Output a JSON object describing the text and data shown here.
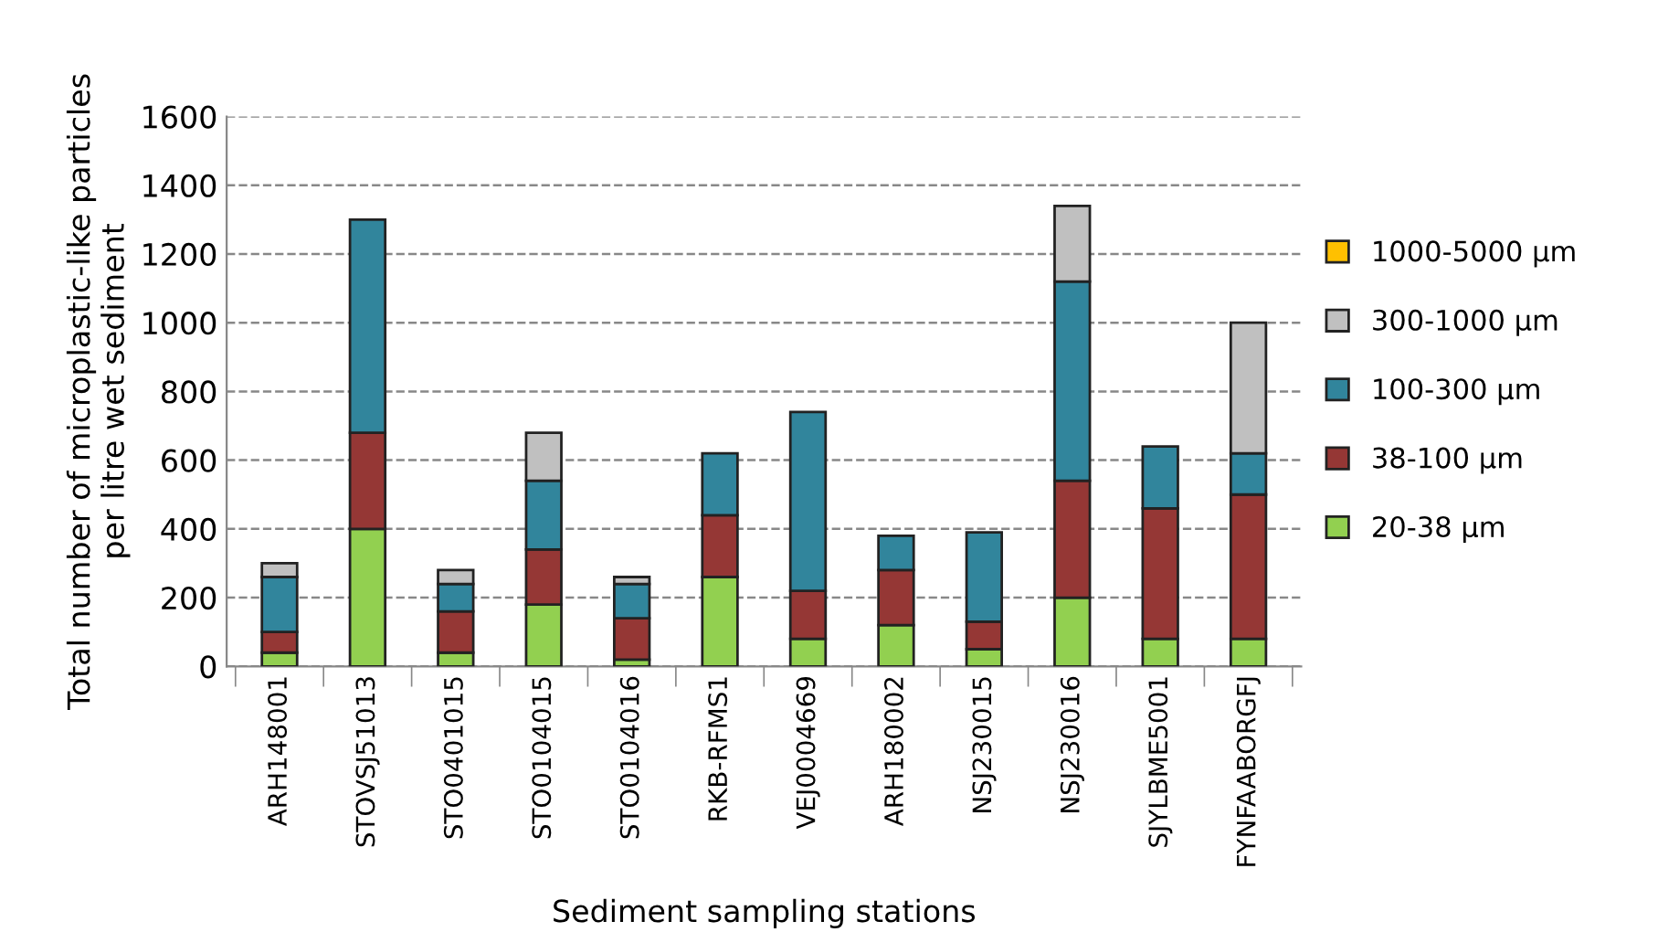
{
  "chart_data": {
    "type": "bar",
    "stacked": true,
    "xlabel": "Sediment sampling stations",
    "ylabel": "Total number of microplastic-like particles\nper litre wet sediment",
    "categories": [
      "ARH148001",
      "STOVSJ51013",
      "STO0401015",
      "STO0104015",
      "STO0104016",
      "RKB-RFMS1",
      "VEJ0004669",
      "ARH180002",
      "NSJ230015",
      "NSJ230016",
      "SJYLBME5001",
      "FYNFAABORGFJ"
    ],
    "series": [
      {
        "name": "20-38 µm",
        "color": "#92d050",
        "values": [
          40,
          400,
          40,
          180,
          20,
          260,
          80,
          120,
          50,
          200,
          80,
          80
        ]
      },
      {
        "name": "38-100 µm",
        "color": "#953735",
        "values": [
          60,
          280,
          120,
          160,
          120,
          180,
          140,
          160,
          80,
          340,
          380,
          420
        ]
      },
      {
        "name": "100-300 µm",
        "color": "#31859c",
        "values": [
          160,
          620,
          80,
          200,
          100,
          180,
          520,
          100,
          260,
          580,
          180,
          120
        ]
      },
      {
        "name": "300-1000 µm",
        "color": "#c0c0c0",
        "values": [
          40,
          null,
          40,
          140,
          20,
          null,
          null,
          null,
          null,
          220,
          null,
          380
        ]
      },
      {
        "name": "1000-5000 µm",
        "color": "#ffc000",
        "values": [
          null,
          null,
          null,
          null,
          null,
          null,
          null,
          null,
          null,
          null,
          null,
          null
        ]
      }
    ],
    "ylim": [
      0,
      1600
    ],
    "yticks": [
      0,
      200,
      400,
      600,
      800,
      1000,
      1200,
      1400,
      1600
    ],
    "grid": "y",
    "legend": "right"
  }
}
